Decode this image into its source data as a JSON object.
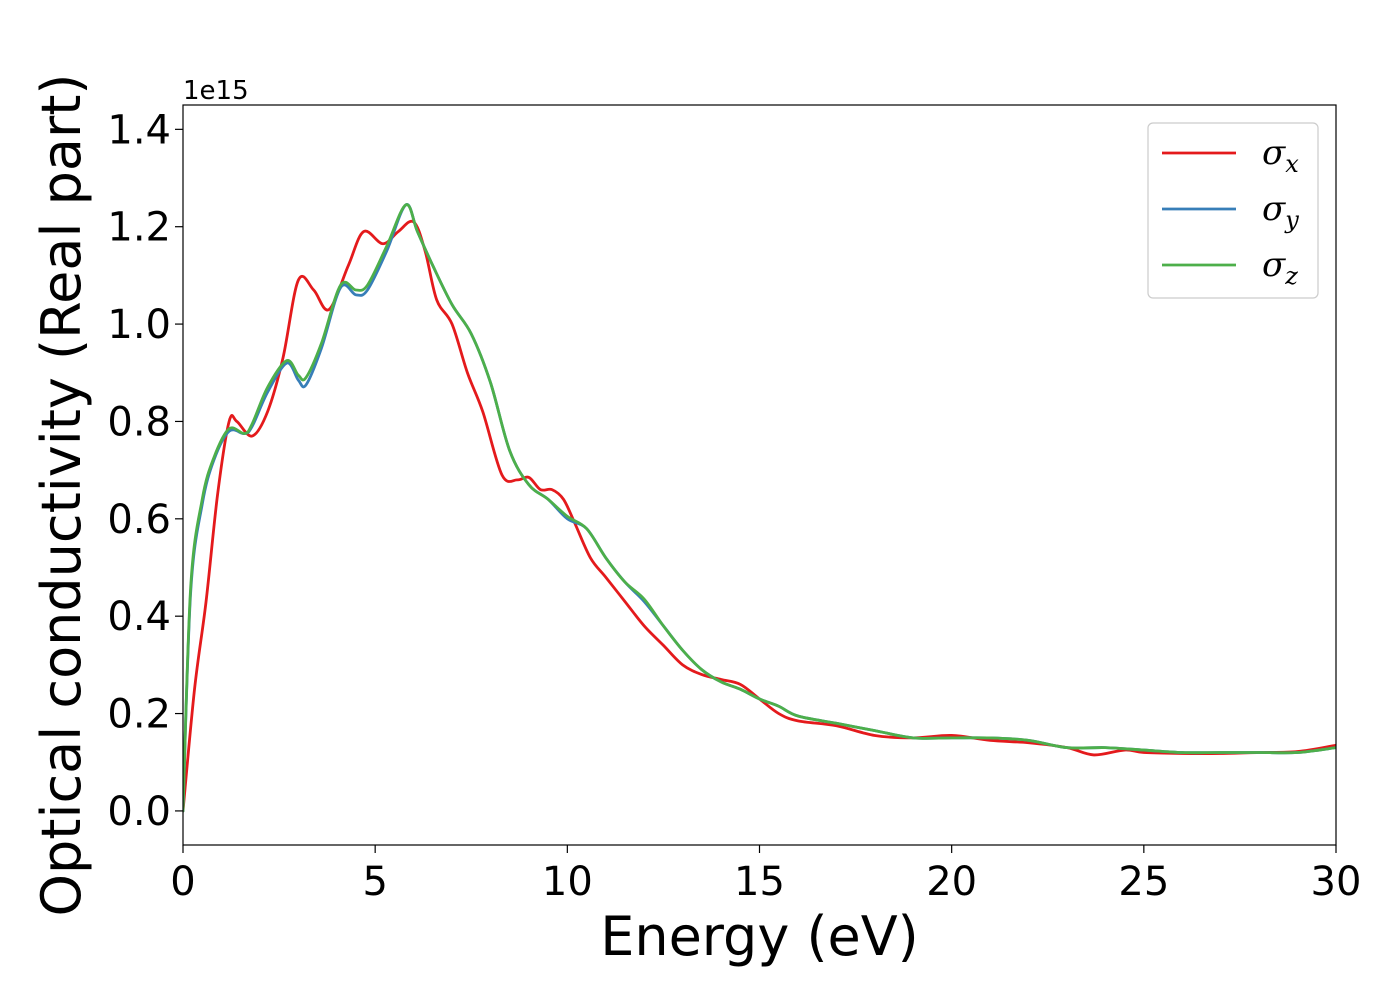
{
  "chart_data": {
    "type": "line",
    "xlabel": "Energy (eV)",
    "ylabel": "Optical conductivity (Real part)",
    "y_offset_text": "1e15",
    "xlim": [
      0,
      30
    ],
    "ylim": [
      -0.07,
      1.45
    ],
    "x_ticks": [
      0,
      5,
      10,
      15,
      20,
      25,
      30
    ],
    "y_ticks": [
      0.0,
      0.2,
      0.4,
      0.6,
      0.8,
      1.0,
      1.2,
      1.4
    ],
    "grid": false,
    "legend_position": "top-right",
    "series": [
      {
        "name": "σx",
        "base": "σ",
        "sub": "x",
        "color": "#e41a1c",
        "x": [
          0,
          0.3,
          0.6,
          0.9,
          1.2,
          1.4,
          1.8,
          2.2,
          2.6,
          3.0,
          3.4,
          3.8,
          4.3,
          4.7,
          5.2,
          5.6,
          6.0,
          6.3,
          6.6,
          7.0,
          7.4,
          7.8,
          8.3,
          8.7,
          9.0,
          9.3,
          9.6,
          9.9,
          10.2,
          10.6,
          11.0,
          11.5,
          12.0,
          12.5,
          13.0,
          13.5,
          14.0,
          14.5,
          15.0,
          15.5,
          16.0,
          17.0,
          18.0,
          19.0,
          20.0,
          21.0,
          22.0,
          23.0,
          23.7,
          24.5,
          25.0,
          26.0,
          27.0,
          28.0,
          29.0,
          30.0
        ],
        "y": [
          0.0,
          0.25,
          0.43,
          0.65,
          0.8,
          0.8,
          0.77,
          0.82,
          0.93,
          1.09,
          1.07,
          1.03,
          1.12,
          1.19,
          1.165,
          1.19,
          1.21,
          1.15,
          1.05,
          1.0,
          0.9,
          0.82,
          0.69,
          0.68,
          0.685,
          0.66,
          0.66,
          0.64,
          0.59,
          0.52,
          0.48,
          0.43,
          0.38,
          0.34,
          0.3,
          0.28,
          0.27,
          0.26,
          0.23,
          0.2,
          0.185,
          0.175,
          0.155,
          0.15,
          0.155,
          0.145,
          0.14,
          0.13,
          0.115,
          0.125,
          0.12,
          0.118,
          0.118,
          0.12,
          0.122,
          0.135
        ]
      },
      {
        "name": "σy",
        "base": "σ",
        "sub": "y",
        "color": "#377eb8",
        "x": [
          0,
          0.2,
          0.5,
          0.8,
          1.2,
          1.6,
          1.8,
          2.2,
          2.7,
          3.0,
          3.2,
          3.6,
          4.1,
          4.5,
          4.8,
          5.3,
          5.8,
          6.1,
          6.5,
          7.0,
          7.5,
          8.0,
          8.5,
          9.0,
          9.5,
          10.0,
          10.5,
          11.0,
          11.5,
          12.0,
          12.5,
          13.0,
          13.5,
          14.0,
          14.5,
          15.0,
          15.5,
          16.0,
          17.0,
          18.0,
          19.0,
          20.0,
          21.0,
          22.0,
          23.0,
          24.0,
          25.0,
          26.0,
          27.0,
          28.0,
          29.0,
          30.0
        ],
        "y": [
          0.0,
          0.45,
          0.63,
          0.72,
          0.78,
          0.775,
          0.79,
          0.86,
          0.92,
          0.885,
          0.875,
          0.95,
          1.075,
          1.06,
          1.07,
          1.15,
          1.245,
          1.19,
          1.12,
          1.04,
          0.98,
          0.88,
          0.74,
          0.67,
          0.64,
          0.6,
          0.58,
          0.52,
          0.47,
          0.43,
          0.38,
          0.33,
          0.29,
          0.265,
          0.25,
          0.23,
          0.215,
          0.195,
          0.18,
          0.165,
          0.15,
          0.15,
          0.15,
          0.145,
          0.13,
          0.13,
          0.125,
          0.12,
          0.12,
          0.12,
          0.12,
          0.13
        ]
      },
      {
        "name": "σz",
        "base": "σ",
        "sub": "z",
        "color": "#4daf4a",
        "x": [
          0,
          0.2,
          0.5,
          0.8,
          1.2,
          1.6,
          1.8,
          2.2,
          2.7,
          3.0,
          3.2,
          3.6,
          4.1,
          4.5,
          4.8,
          5.3,
          5.8,
          6.1,
          6.5,
          7.0,
          7.5,
          8.0,
          8.5,
          9.0,
          9.5,
          10.0,
          10.5,
          11.0,
          11.5,
          12.0,
          12.5,
          13.0,
          13.5,
          14.0,
          14.5,
          15.0,
          15.5,
          16.0,
          17.0,
          18.0,
          19.0,
          20.0,
          21.0,
          22.0,
          23.0,
          24.0,
          25.0,
          26.0,
          27.0,
          28.0,
          29.0,
          30.0
        ],
        "y": [
          0.0,
          0.46,
          0.64,
          0.725,
          0.785,
          0.775,
          0.795,
          0.87,
          0.925,
          0.895,
          0.89,
          0.96,
          1.08,
          1.07,
          1.08,
          1.16,
          1.245,
          1.19,
          1.12,
          1.04,
          0.98,
          0.88,
          0.74,
          0.67,
          0.64,
          0.605,
          0.58,
          0.52,
          0.47,
          0.435,
          0.38,
          0.33,
          0.29,
          0.265,
          0.25,
          0.23,
          0.215,
          0.195,
          0.18,
          0.165,
          0.15,
          0.15,
          0.15,
          0.145,
          0.13,
          0.13,
          0.125,
          0.12,
          0.12,
          0.12,
          0.12,
          0.13
        ]
      }
    ]
  }
}
